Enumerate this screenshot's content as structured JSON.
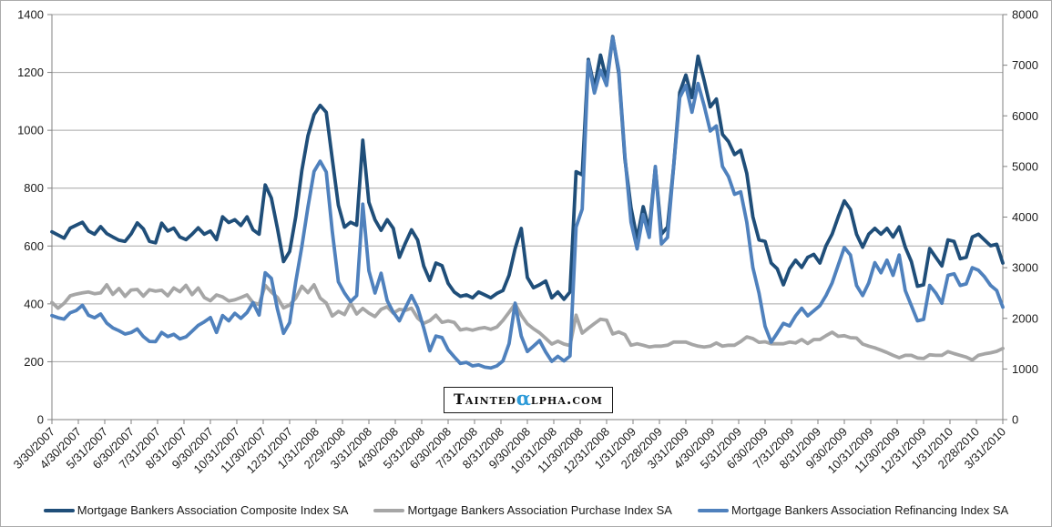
{
  "chart_data": {
    "type": "line",
    "title": "",
    "xlabel": "",
    "ylabel_left": "",
    "ylabel_right": "",
    "x_note": "weekly observations from 3/30/2007 to 3/31/2010; x tick labels are month-end dates",
    "grid": true,
    "legend_position": "bottom",
    "left_axis": {
      "min": 0,
      "max": 1400,
      "step": 200,
      "ticks": [
        0,
        200,
        400,
        600,
        800,
        1000,
        1200,
        1400
      ]
    },
    "right_axis": {
      "min": 0,
      "max": 8000,
      "step": 1000,
      "ticks": [
        0,
        1000,
        2000,
        3000,
        4000,
        5000,
        6000,
        7000,
        8000
      ]
    },
    "x_tick_labels": [
      "3/30/2007",
      "4/30/2007",
      "5/31/2007",
      "6/30/2007",
      "7/31/2007",
      "8/31/2007",
      "9/30/2007",
      "10/31/2007",
      "11/30/2007",
      "12/31/2007",
      "1/31/2008",
      "2/29/2008",
      "3/31/2008",
      "4/30/2008",
      "5/31/2008",
      "6/30/2008",
      "7/31/2008",
      "8/31/2008",
      "9/30/2008",
      "10/31/2008",
      "11/30/2008",
      "12/31/2008",
      "1/31/2009",
      "2/28/2009",
      "3/31/2009",
      "4/30/2009",
      "5/31/2009",
      "6/30/2009",
      "7/31/2009",
      "8/31/2009",
      "9/30/2009",
      "10/31/2009",
      "11/30/2009",
      "12/31/2009",
      "1/31/2010",
      "2/28/2010",
      "3/31/2010"
    ],
    "series": [
      {
        "id": "composite",
        "name": "Mortgage Bankers Association Composite Index SA",
        "axis": "left",
        "color": "#1F4E79",
        "values": [
          649,
          638,
          627,
          662,
          672,
          682,
          652,
          641,
          667,
          643,
          631,
          620,
          616,
          642,
          680,
          659,
          616,
          611,
          679,
          652,
          662,
          631,
          622,
          641,
          663,
          641,
          652,
          622,
          701,
          681,
          691,
          671,
          701,
          656,
          641,
          811,
          766,
          661,
          546,
          581,
          701,
          861,
          981,
          1054,
          1086,
          1062,
          901,
          741,
          665,
          682,
          672,
          966,
          751,
          691,
          654,
          691,
          661,
          561,
          611,
          656,
          621,
          531,
          481,
          541,
          532,
          471,
          441,
          426,
          431,
          421,
          441,
          431,
          421,
          436,
          446,
          499,
          591,
          661,
          491,
          456,
          466,
          479,
          421,
          441,
          416,
          441,
          857,
          846,
          1245,
          1147,
          1260,
          1173,
          1324,
          1196,
          901,
          732,
          625,
          736,
          657,
          871,
          641,
          666,
          876,
          1131,
          1191,
          1113,
          1256,
          1172,
          1081,
          1108,
          986,
          961,
          916,
          931,
          851,
          701,
          621,
          616,
          541,
          521,
          466,
          521,
          551,
          526,
          561,
          571,
          541,
          601,
          641,
          701,
          756,
          726,
          641,
          596,
          641,
          661,
          641,
          661,
          631,
          666,
          596,
          546,
          461,
          466,
          591,
          561,
          531,
          621,
          616,
          556,
          561,
          631,
          641,
          621,
          601,
          606,
          541
        ]
      },
      {
        "id": "purchase",
        "name": "Mortgage Bankers Association Purchase Index SA",
        "axis": "left",
        "color": "#A6A6A6",
        "values": [
          405,
          385,
          402,
          428,
          434,
          438,
          441,
          435,
          438,
          466,
          433,
          453,
          426,
          448,
          450,
          427,
          449,
          444,
          447,
          428,
          455,
          442,
          464,
          432,
          455,
          422,
          411,
          431,
          424,
          410,
          414,
          422,
          431,
          404,
          398,
          464,
          441,
          422,
          386,
          396,
          420,
          461,
          439,
          466,
          420,
          403,
          358,
          374,
          363,
          403,
          365,
          384,
          368,
          356,
          381,
          390,
          368,
          381,
          378,
          385,
          351,
          333,
          342,
          361,
          336,
          341,
          336,
          310,
          314,
          309,
          315,
          318,
          312,
          320,
          343,
          371,
          400,
          361,
          331,
          314,
          300,
          281,
          261,
          271,
          261,
          256,
          361,
          299,
          316,
          332,
          347,
          344,
          296,
          303,
          294,
          257,
          262,
          257,
          251,
          254,
          254,
          257,
          268,
          268,
          268,
          260,
          254,
          251,
          254,
          265,
          254,
          257,
          257,
          270,
          286,
          280,
          267,
          269,
          262,
          262,
          262,
          268,
          265,
          277,
          263,
          277,
          277,
          290,
          302,
          288,
          290,
          283,
          282,
          261,
          254,
          248,
          240,
          232,
          222,
          214,
          222,
          222,
          213,
          211,
          224,
          222,
          222,
          235,
          228,
          222,
          216,
          206,
          222,
          227,
          231,
          236,
          246
        ]
      },
      {
        "id": "refinancing",
        "name": "Mortgage Bankers Association Refinancing Index SA",
        "axis": "right",
        "color": "#4F81BD",
        "values": [
          2055,
          2012,
          1985,
          2110,
          2155,
          2258,
          2060,
          2011,
          2085,
          1905,
          1810,
          1756,
          1690,
          1720,
          1790,
          1640,
          1545,
          1540,
          1720,
          1640,
          1685,
          1595,
          1635,
          1745,
          1860,
          1930,
          2015,
          1720,
          2055,
          1950,
          2100,
          2000,
          2115,
          2310,
          2065,
          2900,
          2790,
          2180,
          1705,
          1915,
          2720,
          3420,
          4200,
          4900,
          5103,
          4890,
          3720,
          2722,
          2500,
          2330,
          2448,
          4255,
          2940,
          2500,
          2890,
          2350,
          2120,
          1950,
          2210,
          2450,
          2210,
          1810,
          1360,
          1650,
          1620,
          1380,
          1240,
          1110,
          1130,
          1060,
          1080,
          1035,
          1020,
          1060,
          1160,
          1500,
          2300,
          1650,
          1345,
          1450,
          1560,
          1335,
          1150,
          1250,
          1160,
          1255,
          3802,
          4156,
          7080,
          6450,
          6900,
          6600,
          7550,
          6900,
          5200,
          3900,
          3370,
          4050,
          3600,
          5000,
          3470,
          3600,
          5000,
          6360,
          6600,
          6071,
          6640,
          6200,
          5700,
          5800,
          5000,
          4800,
          4450,
          4500,
          3900,
          3000,
          2500,
          1840,
          1530,
          1710,
          1900,
          1850,
          2050,
          2200,
          2050,
          2150,
          2250,
          2450,
          2700,
          3050,
          3400,
          3250,
          2650,
          2450,
          2700,
          3100,
          2900,
          3150,
          2850,
          3250,
          2550,
          2250,
          1950,
          1980,
          2650,
          2500,
          2300,
          2850,
          2880,
          2650,
          2680,
          3000,
          2950,
          2820,
          2650,
          2550,
          2220
        ]
      }
    ]
  },
  "watermark": {
    "prefix": "Tainted",
    "alpha": "α",
    "suffix": "lpha.com",
    "alpha_color": "#2E9BD8"
  },
  "style_colors": {
    "gridline": "#A6A6A6",
    "axis_line": "#808080",
    "outer_border": "#ABABAB",
    "tick_label": "#1a1a1a"
  }
}
